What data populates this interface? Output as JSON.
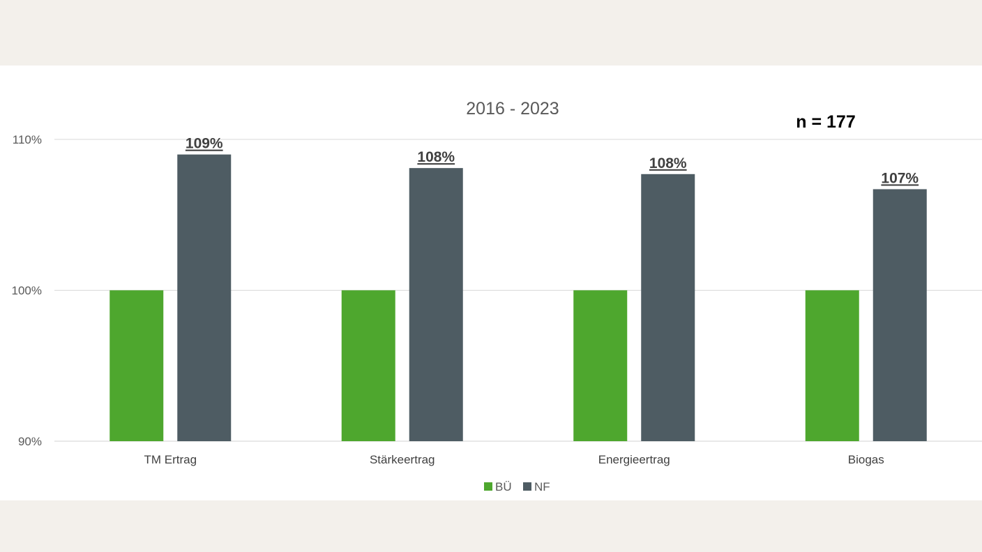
{
  "chart_data": {
    "type": "bar",
    "title": "2016 - 2023",
    "annotation": "n = 177",
    "categories": [
      "TM Ertrag",
      "Stärkeertrag",
      "Energieertrag",
      "Biogas"
    ],
    "series": [
      {
        "name": "BÜ",
        "values": [
          100,
          100,
          100,
          100
        ],
        "color": "#4ea72e"
      },
      {
        "name": "NF",
        "values": [
          109,
          108.1,
          107.7,
          106.7
        ],
        "color": "#4e5c63"
      }
    ],
    "data_labels": {
      "NF": [
        "109%",
        "108%",
        "108%",
        "107%"
      ]
    },
    "ylim": [
      90,
      110
    ],
    "yticks": [
      90,
      100,
      110
    ],
    "ytick_labels": [
      "90%",
      "100%",
      "110%"
    ],
    "grid": true,
    "legend": "bottom-center"
  }
}
